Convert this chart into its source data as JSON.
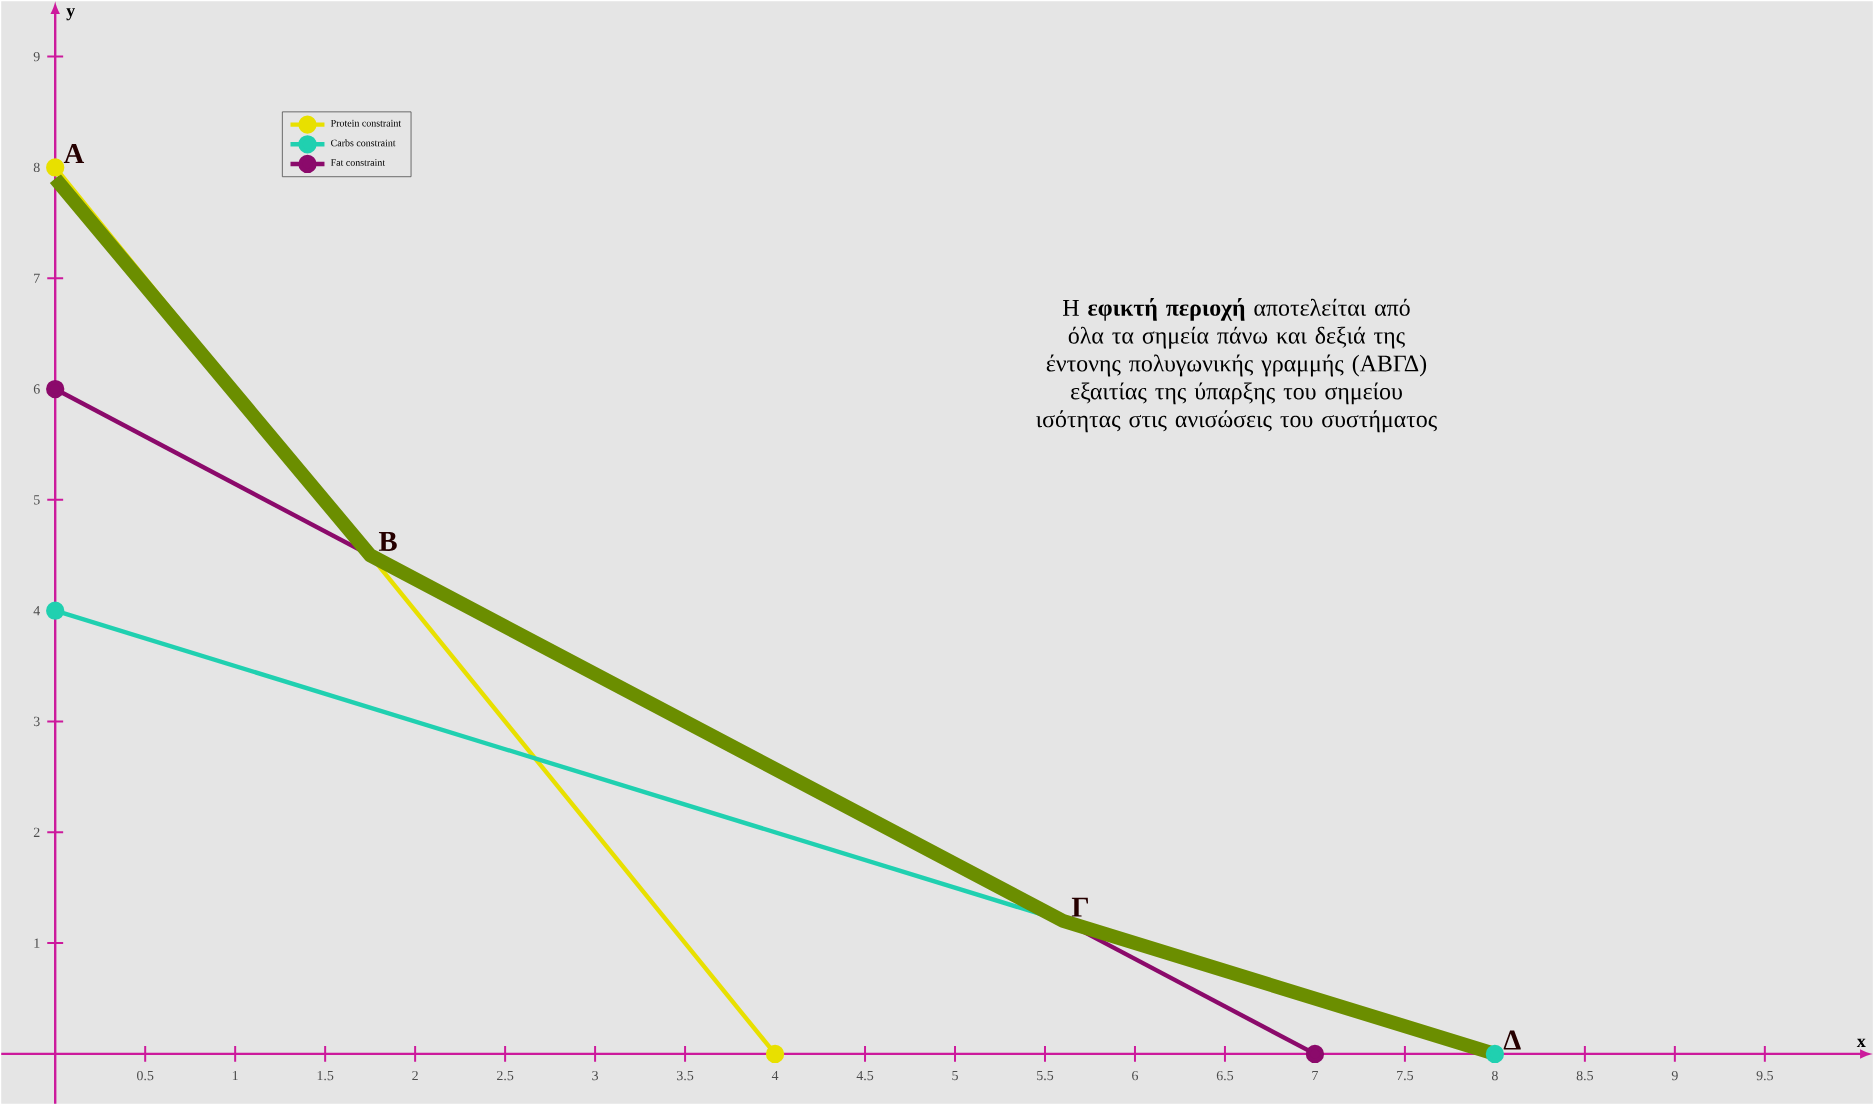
{
  "chart_data": {
    "type": "line",
    "xlabel": "x",
    "ylabel": "y",
    "xlim": [
      -0.3,
      10.1
    ],
    "ylim": [
      -0.45,
      9.5
    ],
    "xticks": [
      0.5,
      1,
      1.5,
      2,
      2.5,
      3,
      3.5,
      4,
      4.5,
      5,
      5.5,
      6,
      6.5,
      7,
      7.5,
      8,
      8.5,
      9,
      9.5
    ],
    "yticks": [
      1,
      2,
      3,
      4,
      5,
      6,
      7,
      8,
      9
    ],
    "legend": "top left",
    "grid": false,
    "series": [
      {
        "name": "Protein constraint",
        "color": "#e8e000",
        "x": [
          0,
          4
        ],
        "values": [
          8,
          0
        ],
        "marker": "circle"
      },
      {
        "name": "Carbs constraint",
        "color": "#20d0b0",
        "x": [
          0,
          8
        ],
        "values": [
          4,
          0
        ],
        "marker": "circle"
      },
      {
        "name": "Fat constraint",
        "color": "#8b0a6b",
        "x": [
          0,
          7
        ],
        "values": [
          6,
          0
        ],
        "marker": "circle"
      },
      {
        "color": "#6b8e00",
        "x": [
          0,
          1.75,
          5.6,
          8
        ],
        "values": [
          7.9,
          4.5,
          1.2,
          0
        ],
        "marker": "none"
      }
    ],
    "annotations": [
      {
        "text": "A",
        "x": 0,
        "y": 8
      },
      {
        "text": "B",
        "x": 1.75,
        "y": 4.5
      },
      {
        "text": "Γ",
        "x": 5.6,
        "y": 1.2
      },
      {
        "text": "Δ",
        "x": 8,
        "y": 0
      },
      "Η **εφικτή περιοχή** αποτελείται από όλα τα σημεία πάνω και δεξιά της έντονης πολυγωνικής γραμμής (ΑΒΓΔ) εξαιτίας της ύπαρξης του σημείου ισότητας στις ανισώσεις του συστήματος"
    ]
  }
}
